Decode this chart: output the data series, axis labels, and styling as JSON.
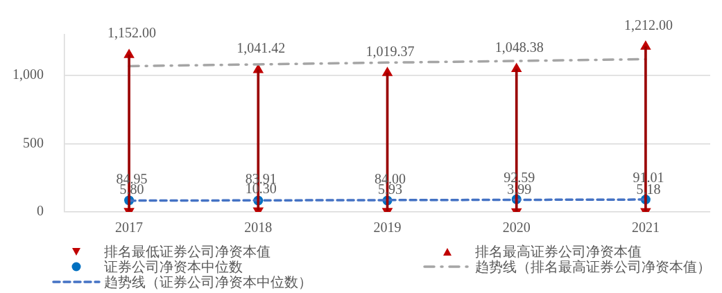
{
  "chart_data": {
    "type": "scatter",
    "categories": [
      "2017",
      "2018",
      "2019",
      "2020",
      "2021"
    ],
    "series": [
      {
        "name": "排名最低证券公司净资本值",
        "color": "#c00000",
        "marker": "triangle",
        "values": [
          5.8,
          10.3,
          5.93,
          3.99,
          5.18
        ],
        "value_labels": [
          "5.80",
          "10.30",
          "5.93",
          "3.99",
          "5.18"
        ]
      },
      {
        "name": "排名最高证券公司净资本值",
        "color": "#c00000",
        "marker": "triangle",
        "values": [
          1152.0,
          1041.42,
          1019.37,
          1048.38,
          1212.0
        ],
        "value_labels": [
          "1,152.00",
          "1,041.42",
          "1,019.37",
          "1,048.38",
          "1,212.00"
        ]
      },
      {
        "name": "证券公司净资本中位数",
        "color": "#0070c0",
        "marker": "circle",
        "values": [
          84.95,
          83.91,
          84.0,
          92.59,
          91.01
        ],
        "value_labels": [
          "84.95",
          "83.91",
          "84.00",
          "92.59",
          "91.01"
        ]
      },
      {
        "name": "趋势线（排名最高证券公司净资本值）",
        "type": "line",
        "color": "#a5a5a5",
        "marker": "none",
        "line_style": "dashdot",
        "values": [
          1069,
          1082,
          1095,
          1107,
          1120
        ]
      },
      {
        "name": "趋势线（证券公司净资本中位数）",
        "type": "line",
        "color": "#4472c4",
        "marker": "none",
        "line_style": "dashed",
        "values": [
          83,
          85,
          87,
          89,
          91
        ]
      },
      {
        "type": "bar",
        "color": "#9a0000",
        "base": [
          5.8,
          10.3,
          5.93,
          3.99,
          5.18
        ],
        "values": [
          1146,
          1031,
          1013,
          1044,
          1207
        ]
      }
    ],
    "ylim": [
      0,
      1300
    ],
    "yticks": [
      0,
      500,
      {
        "value": 1000,
        "label": "1,000"
      }
    ],
    "grid": "y",
    "legend": "bottom"
  }
}
